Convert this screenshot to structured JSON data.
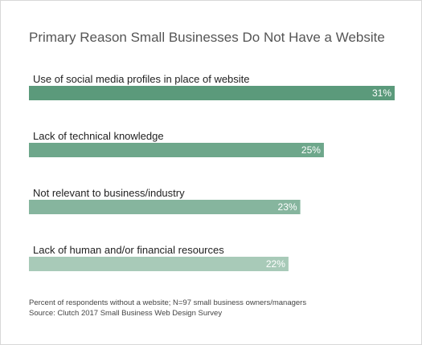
{
  "chart_data": {
    "type": "bar",
    "orientation": "horizontal",
    "title": "Primary Reason Small Businesses Do Not Have a Website",
    "categories": [
      "Use of social media profiles in place of website",
      "Lack of technical knowledge",
      "Not relevant to business/industry",
      "Lack of human and/or financial resources"
    ],
    "values": [
      31,
      25,
      23,
      22
    ],
    "value_labels": [
      "31%",
      "25%",
      "23%",
      "22%"
    ],
    "xlim": [
      0,
      31
    ],
    "grid": false,
    "legend": "none",
    "colors": [
      "#5b9a7b",
      "#6ea78b",
      "#86b59e",
      "#a8cab8"
    ]
  },
  "notes": {
    "line1": "Percent of respondents without a website; N=97 small business owners/managers",
    "line2": "Source: Clutch 2017 Small Business Web Design Survey"
  }
}
